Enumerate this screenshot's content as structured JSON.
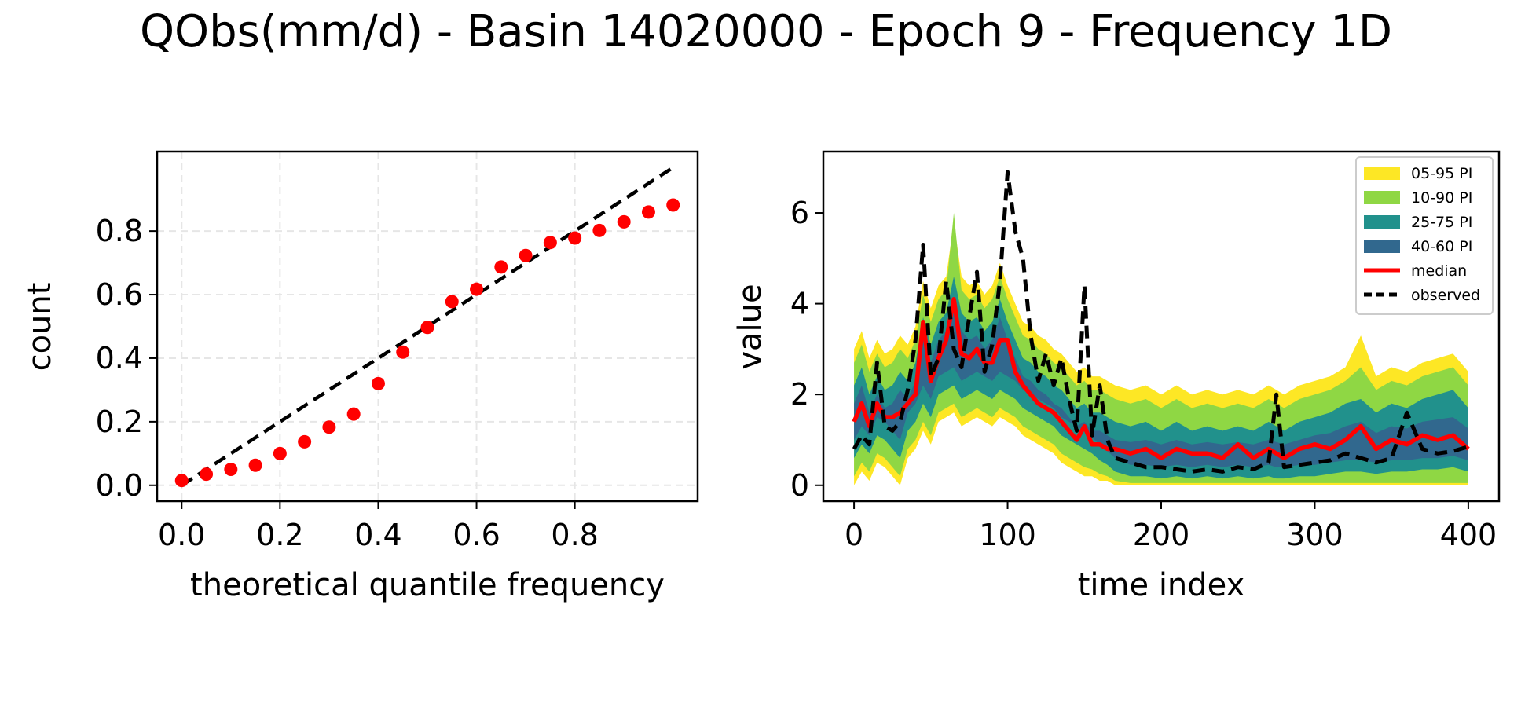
{
  "figure": {
    "title": "QObs(mm/d) - Basin 14020000 - Epoch 9 - Frequency 1D"
  },
  "chart_data": [
    {
      "type": "scatter",
      "xlabel": "theoretical quantile frequency",
      "ylabel": "count",
      "xlim": [
        -0.05,
        1.05
      ],
      "ylim": [
        -0.05,
        1.05
      ],
      "xticks": [
        0.0,
        0.2,
        0.4,
        0.6,
        0.8
      ],
      "xtick_labels": [
        "0.0",
        "0.2",
        "0.4",
        "0.6",
        "0.8"
      ],
      "yticks": [
        0.0,
        0.2,
        0.4,
        0.6,
        0.8
      ],
      "ytick_labels": [
        "0.0",
        "0.2",
        "0.4",
        "0.6",
        "0.8"
      ],
      "grid": true,
      "series": [
        {
          "kind": "points",
          "color": "#ff0000",
          "x": [
            0.0,
            0.05,
            0.1,
            0.15,
            0.2,
            0.25,
            0.3,
            0.35,
            0.4,
            0.45,
            0.5,
            0.55,
            0.6,
            0.65,
            0.7,
            0.75,
            0.8,
            0.85,
            0.9,
            0.95,
            1.0
          ],
          "y": [
            0.015,
            0.035,
            0.05,
            0.063,
            0.1,
            0.137,
            0.183,
            0.224,
            0.32,
            0.419,
            0.497,
            0.578,
            0.617,
            0.687,
            0.723,
            0.764,
            0.778,
            0.802,
            0.829,
            0.86,
            0.882
          ]
        },
        {
          "kind": "line",
          "style": "dashed",
          "color": "#000000",
          "x": [
            0.0,
            1.0
          ],
          "y": [
            0.0,
            1.0
          ]
        }
      ]
    },
    {
      "type": "area",
      "xlabel": "time index",
      "ylabel": "value",
      "xlim": [
        -20,
        420
      ],
      "ylim": [
        -0.35,
        7.35
      ],
      "xticks": [
        0,
        100,
        200,
        300,
        400
      ],
      "xtick_labels": [
        "0",
        "100",
        "200",
        "300",
        "400"
      ],
      "yticks": [
        0,
        2,
        4,
        6
      ],
      "ytick_labels": [
        "0",
        "2",
        "4",
        "6"
      ],
      "grid": false,
      "legend_position": "top-right",
      "legend": [
        {
          "label": "05-95 PI",
          "kind": "patch",
          "color": "#fde725"
        },
        {
          "label": "10-90 PI",
          "kind": "patch",
          "color": "#8fd744"
        },
        {
          "label": "25-75 PI",
          "kind": "patch",
          "color": "#21918c"
        },
        {
          "label": "40-60 PI",
          "kind": "patch",
          "color": "#31688e"
        },
        {
          "label": "median",
          "kind": "line",
          "color": "#ff0000"
        },
        {
          "label": "observed",
          "kind": "dashed",
          "color": "#000000"
        }
      ],
      "x": [
        0,
        5,
        10,
        15,
        20,
        25,
        30,
        35,
        40,
        45,
        50,
        55,
        60,
        65,
        70,
        75,
        80,
        85,
        90,
        95,
        100,
        105,
        110,
        115,
        120,
        125,
        130,
        135,
        140,
        145,
        150,
        155,
        160,
        165,
        170,
        180,
        190,
        200,
        210,
        220,
        230,
        240,
        250,
        260,
        270,
        275,
        280,
        290,
        300,
        310,
        320,
        330,
        340,
        350,
        360,
        370,
        380,
        390,
        400
      ],
      "bands": [
        {
          "name": "05-95 PI",
          "color": "#fde725",
          "lower": [
            0.0,
            0.3,
            0.1,
            0.5,
            0.4,
            0.2,
            0.0,
            0.6,
            0.8,
            1.2,
            0.9,
            1.4,
            1.5,
            1.6,
            1.3,
            1.4,
            1.5,
            1.4,
            1.3,
            1.5,
            1.4,
            1.3,
            1.1,
            1.0,
            0.9,
            0.8,
            0.7,
            0.5,
            0.4,
            0.3,
            0.2,
            0.2,
            0.1,
            0.1,
            0.0,
            0.0,
            0.0,
            0.0,
            0.0,
            0.0,
            0.0,
            0.0,
            0.0,
            0.0,
            0.0,
            0.0,
            0.0,
            0.0,
            0.0,
            0.0,
            0.0,
            0.0,
            0.0,
            0.0,
            0.0,
            0.0,
            0.0,
            0.0,
            0.0
          ],
          "upper": [
            3.0,
            3.4,
            2.8,
            3.2,
            2.9,
            3.0,
            3.3,
            3.1,
            3.5,
            4.5,
            3.9,
            4.4,
            4.6,
            5.8,
            4.6,
            4.4,
            4.5,
            4.2,
            4.4,
            4.9,
            4.4,
            4.0,
            3.6,
            3.5,
            3.3,
            3.2,
            3.0,
            2.9,
            2.7,
            2.5,
            2.6,
            2.4,
            2.4,
            2.3,
            2.2,
            2.1,
            2.2,
            2.0,
            2.2,
            2.0,
            2.1,
            2.0,
            2.1,
            2.0,
            2.2,
            2.1,
            2.0,
            2.2,
            2.3,
            2.4,
            2.6,
            3.3,
            2.4,
            2.6,
            2.5,
            2.7,
            2.8,
            2.9,
            2.5
          ]
        },
        {
          "name": "10-90 PI",
          "color": "#8fd744",
          "lower": [
            0.2,
            0.5,
            0.3,
            0.7,
            0.6,
            0.4,
            0.2,
            0.8,
            1.0,
            1.4,
            1.1,
            1.6,
            1.7,
            1.8,
            1.5,
            1.6,
            1.7,
            1.6,
            1.5,
            1.7,
            1.6,
            1.5,
            1.3,
            1.2,
            1.1,
            1.0,
            0.9,
            0.7,
            0.6,
            0.5,
            0.4,
            0.35,
            0.25,
            0.2,
            0.1,
            0.05,
            0.05,
            0.05,
            0.05,
            0.05,
            0.05,
            0.05,
            0.05,
            0.05,
            0.05,
            0.05,
            0.05,
            0.05,
            0.05,
            0.05,
            0.05,
            0.05,
            0.05,
            0.05,
            0.05,
            0.05,
            0.05,
            0.05,
            0.05
          ],
          "upper": [
            2.7,
            3.1,
            2.5,
            2.9,
            2.6,
            2.7,
            3.0,
            2.8,
            3.2,
            4.2,
            3.6,
            4.1,
            4.3,
            6.0,
            4.3,
            4.1,
            4.2,
            3.9,
            4.1,
            4.6,
            4.1,
            3.7,
            3.3,
            3.2,
            3.0,
            2.9,
            2.7,
            2.6,
            2.4,
            2.2,
            2.3,
            2.1,
            2.1,
            2.0,
            1.9,
            1.8,
            1.9,
            1.7,
            1.9,
            1.7,
            1.8,
            1.7,
            1.8,
            1.7,
            1.9,
            1.8,
            1.7,
            1.9,
            2.0,
            2.1,
            2.3,
            2.6,
            2.1,
            2.3,
            2.2,
            2.4,
            2.5,
            2.6,
            2.2
          ]
        },
        {
          "name": "25-75 PI",
          "color": "#21918c",
          "lower": [
            0.6,
            0.9,
            0.7,
            1.1,
            1.0,
            0.8,
            0.6,
            1.2,
            1.4,
            1.8,
            1.5,
            2.0,
            2.1,
            2.2,
            1.9,
            2.0,
            2.1,
            2.0,
            1.9,
            2.1,
            2.0,
            1.9,
            1.7,
            1.6,
            1.5,
            1.4,
            1.3,
            1.1,
            1.0,
            0.9,
            0.8,
            0.7,
            0.55,
            0.45,
            0.3,
            0.2,
            0.2,
            0.15,
            0.2,
            0.15,
            0.2,
            0.15,
            0.2,
            0.15,
            0.2,
            0.15,
            0.15,
            0.2,
            0.2,
            0.25,
            0.3,
            0.3,
            0.25,
            0.3,
            0.3,
            0.35,
            0.35,
            0.4,
            0.3
          ],
          "upper": [
            2.2,
            2.6,
            2.0,
            2.4,
            2.1,
            2.2,
            2.5,
            2.3,
            2.7,
            3.7,
            3.1,
            3.6,
            3.8,
            4.6,
            3.8,
            3.6,
            3.7,
            3.4,
            3.6,
            4.1,
            3.6,
            3.2,
            2.8,
            2.7,
            2.5,
            2.4,
            2.2,
            2.1,
            1.9,
            1.7,
            1.8,
            1.6,
            1.6,
            1.5,
            1.4,
            1.3,
            1.4,
            1.2,
            1.4,
            1.2,
            1.3,
            1.2,
            1.3,
            1.2,
            1.4,
            1.3,
            1.2,
            1.4,
            1.5,
            1.6,
            1.8,
            1.9,
            1.6,
            1.8,
            1.7,
            1.9,
            2.0,
            2.1,
            1.7
          ]
        },
        {
          "name": "40-60 PI",
          "color": "#31688e",
          "lower": [
            1.0,
            1.3,
            1.1,
            1.5,
            1.4,
            1.2,
            1.0,
            1.6,
            1.8,
            2.2,
            1.9,
            2.4,
            2.5,
            2.6,
            2.3,
            2.4,
            2.5,
            2.4,
            2.3,
            2.5,
            2.4,
            2.3,
            2.1,
            2.0,
            1.9,
            1.8,
            1.7,
            1.5,
            1.4,
            1.3,
            1.2,
            1.05,
            0.9,
            0.75,
            0.6,
            0.45,
            0.45,
            0.4,
            0.45,
            0.4,
            0.45,
            0.4,
            0.45,
            0.4,
            0.45,
            0.4,
            0.4,
            0.45,
            0.45,
            0.5,
            0.55,
            0.55,
            0.5,
            0.55,
            0.55,
            0.6,
            0.6,
            0.65,
            0.55
          ],
          "upper": [
            1.8,
            2.2,
            1.6,
            2.0,
            1.7,
            1.8,
            2.1,
            1.9,
            2.3,
            3.3,
            2.7,
            3.2,
            3.4,
            4.0,
            3.4,
            3.2,
            3.3,
            3.0,
            3.2,
            3.7,
            3.2,
            2.8,
            2.4,
            2.3,
            2.1,
            2.0,
            1.8,
            1.7,
            1.5,
            1.3,
            1.4,
            1.2,
            1.2,
            1.1,
            1.0,
            0.95,
            1.0,
            0.9,
            1.0,
            0.9,
            0.95,
            0.9,
            0.95,
            0.9,
            1.0,
            0.95,
            0.9,
            1.0,
            1.1,
            1.15,
            1.3,
            1.4,
            1.15,
            1.3,
            1.25,
            1.4,
            1.45,
            1.5,
            1.25
          ]
        }
      ],
      "series": [
        {
          "name": "median",
          "color": "#ff0000",
          "style": "solid",
          "y": [
            1.4,
            1.8,
            1.3,
            1.8,
            1.5,
            1.5,
            1.6,
            1.8,
            2.0,
            3.6,
            2.3,
            2.8,
            3.2,
            4.1,
            2.9,
            2.8,
            3.0,
            2.7,
            2.7,
            3.2,
            3.2,
            2.5,
            2.2,
            2.0,
            1.8,
            1.7,
            1.6,
            1.4,
            1.2,
            1.0,
            1.3,
            0.9,
            0.9,
            0.8,
            0.8,
            0.7,
            0.8,
            0.6,
            0.8,
            0.7,
            0.7,
            0.6,
            0.9,
            0.6,
            0.8,
            0.7,
            0.6,
            0.8,
            0.9,
            0.8,
            1.0,
            1.3,
            0.8,
            1.0,
            0.9,
            1.1,
            1.0,
            1.1,
            0.8
          ]
        },
        {
          "name": "observed",
          "color": "#000000",
          "style": "dashed",
          "y": [
            0.8,
            1.1,
            0.9,
            2.7,
            1.3,
            1.2,
            1.4,
            2.1,
            3.2,
            5.3,
            2.4,
            2.8,
            4.5,
            3.0,
            2.6,
            3.7,
            4.7,
            2.5,
            3.1,
            4.5,
            6.9,
            5.6,
            5.0,
            3.3,
            2.3,
            2.9,
            2.2,
            2.8,
            1.9,
            1.2,
            4.4,
            1.1,
            2.2,
            1.0,
            0.6,
            0.5,
            0.4,
            0.4,
            0.35,
            0.3,
            0.35,
            0.3,
            0.4,
            0.35,
            0.5,
            2.0,
            0.4,
            0.45,
            0.5,
            0.55,
            0.7,
            0.6,
            0.5,
            0.6,
            1.6,
            0.8,
            0.7,
            0.75,
            0.85
          ]
        }
      ]
    }
  ]
}
